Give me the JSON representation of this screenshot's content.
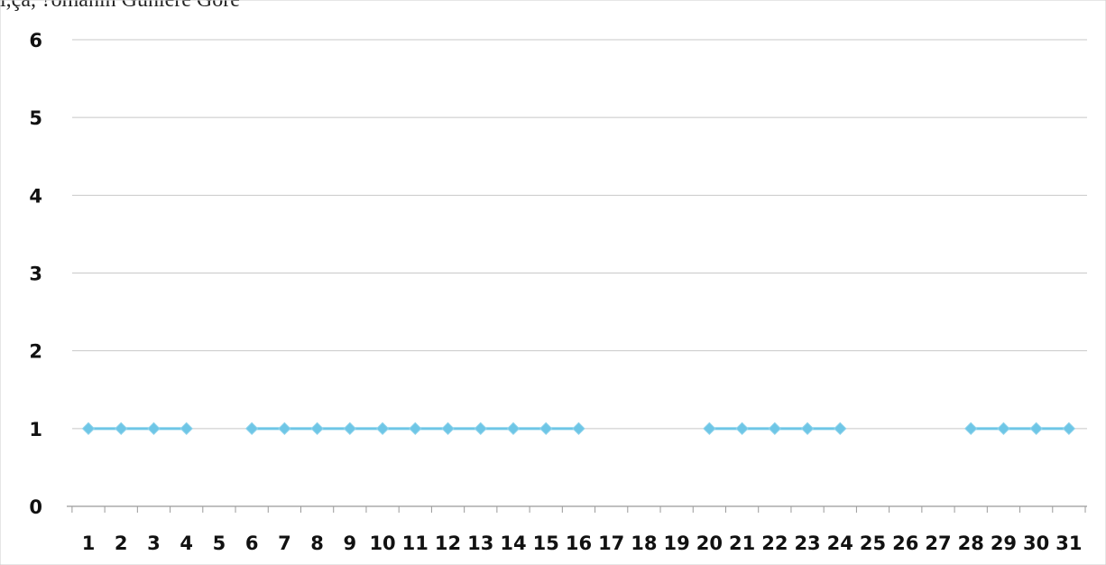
{
  "header_snippet": "ı,ça, ?ömanin Günlere Göre",
  "chart_data": {
    "type": "line",
    "title": "",
    "xlabel": "",
    "ylabel": "",
    "ylim": [
      0,
      6
    ],
    "y_ticks": [
      0,
      1,
      2,
      3,
      4,
      5,
      6
    ],
    "categories": [
      "1",
      "2",
      "3",
      "4",
      "5",
      "6",
      "7",
      "8",
      "9",
      "10",
      "11",
      "12",
      "13",
      "14",
      "15",
      "16",
      "17",
      "18",
      "19",
      "20",
      "21",
      "22",
      "23",
      "24",
      "25",
      "26",
      "27",
      "28",
      "29",
      "30",
      "31"
    ],
    "series": [
      {
        "values": [
          1,
          1,
          1,
          1,
          null,
          1,
          1,
          1,
          1,
          1,
          1,
          1,
          1,
          1,
          1,
          1,
          null,
          null,
          null,
          1,
          1,
          1,
          1,
          1,
          null,
          null,
          null,
          1,
          1,
          1,
          1
        ],
        "color": "#6ec6e6"
      }
    ],
    "grid": true,
    "legend": "none"
  }
}
